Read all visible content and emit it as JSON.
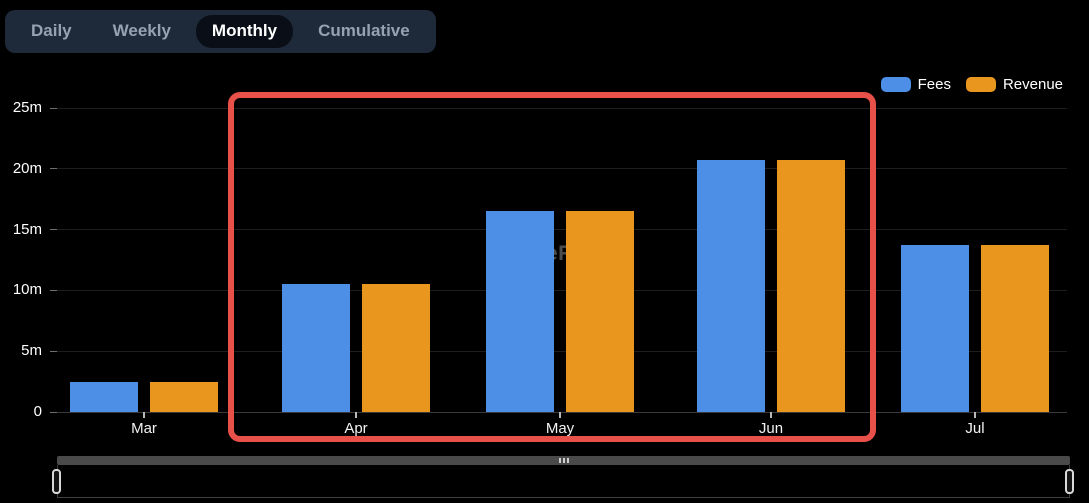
{
  "tabs": {
    "items": [
      {
        "label": "Daily",
        "active": false
      },
      {
        "label": "Weekly",
        "active": false
      },
      {
        "label": "Monthly",
        "active": true
      },
      {
        "label": "Cumulative",
        "active": false
      }
    ]
  },
  "legend": {
    "items": [
      {
        "label": "Fees",
        "color": "#4D8EE6"
      },
      {
        "label": "Revenue",
        "color": "#E8961E"
      }
    ]
  },
  "chart_data": {
    "type": "bar",
    "title": "",
    "categories": [
      "Mar",
      "Apr",
      "May",
      "Jun",
      "Jul"
    ],
    "series": [
      {
        "name": "Fees",
        "color": "#4D8EE6",
        "values": [
          2.5,
          10.5,
          16.5,
          20.7,
          13.7
        ]
      },
      {
        "name": "Revenue",
        "color": "#E8961E",
        "values": [
          2.5,
          10.5,
          16.5,
          20.7,
          13.7
        ]
      }
    ],
    "xlabel": "",
    "ylabel": "",
    "unit": "m",
    "y_tick_values": [
      0,
      5,
      10,
      15,
      20,
      25
    ],
    "y_tick_labels": [
      "0",
      "5m",
      "10m",
      "15m",
      "20m",
      "25m"
    ],
    "ylim": [
      0,
      25
    ],
    "grid": true,
    "legend_position": "top-right",
    "background": "#000000"
  },
  "annotation": {
    "color": "#E8504A",
    "covers": [
      "Apr",
      "May",
      "Jun"
    ]
  },
  "watermark": {
    "visible_fragment": "eF"
  },
  "colors": {
    "background": "#000000",
    "tabbar_bg": "#1E2A3A",
    "tab_active_bg": "#0A0E17",
    "tab_inactive_text": "#97A1B2",
    "axis_text": "#FFFFFF",
    "gridline": "#1E1E1E",
    "annotation_red": "#E8504A"
  }
}
